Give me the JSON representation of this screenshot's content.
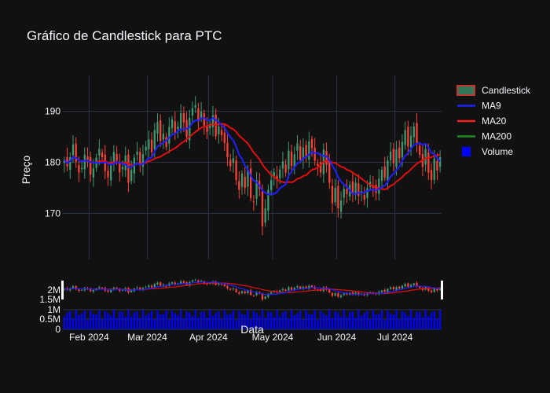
{
  "chart_data": {
    "type": "candlestick",
    "title": "Gráfico de Candlestick para PTC",
    "ylabel": "Preço",
    "xlabel": "Data",
    "ylim": [
      161,
      197
    ],
    "price_ticks": [
      170,
      180,
      190
    ],
    "volume_ticks": [
      "0",
      "0.5M",
      "1M",
      "1.5M",
      "2M"
    ],
    "x_ticks": [
      "Feb 2024",
      "Mar 2024",
      "Apr 2024",
      "May 2024",
      "Jun 2024",
      "Jul 2024"
    ],
    "legend": [
      {
        "name": "Candlestick",
        "color": "#3d9970"
      },
      {
        "name": "MA9",
        "color": "#1f1fff"
      },
      {
        "name": "MA20",
        "color": "#ff1f1f"
      },
      {
        "name": "MA200",
        "color": "#1f8f1f"
      },
      {
        "name": "Volume",
        "color": "#0000ff"
      }
    ],
    "colors": {
      "up": "#3d9970",
      "down": "#ff4136",
      "ma9": "#1f1fff",
      "ma20": "#e01010",
      "ma200": "#1f8f1f",
      "volume": "#0000ff",
      "background": "#111111",
      "grid": "#283442"
    },
    "closes": [
      {
        "month": "2024-01",
        "values": [
          180.5,
          179.2,
          181.0,
          183.5,
          180.1,
          178.0,
          178.9,
          181.5,
          180.3
        ]
      },
      {
        "month": "2024-02",
        "values": [
          177.6,
          178.8,
          180.9,
          182.6,
          181.0,
          178.3,
          177.0,
          179.4,
          182.0,
          180.3,
          178.0,
          179.1,
          181.3,
          176.0,
          178.5,
          180.9,
          182.1,
          179.6,
          181.6,
          183.0
        ]
      },
      {
        "month": "2024-03",
        "values": [
          184.5,
          182.0,
          186.3,
          187.9,
          184.2,
          185.6,
          183.0,
          186.9,
          188.4,
          185.8,
          187.0,
          189.6,
          187.8,
          185.0,
          188.7,
          190.6,
          191.2,
          188.0,
          189.9,
          187.2,
          186.0
        ]
      },
      {
        "month": "2024-04",
        "values": [
          187.5,
          189.2,
          185.1,
          187.0,
          185.3,
          183.8,
          181.0,
          179.2,
          180.8,
          176.5,
          174.6,
          177.8,
          175.0,
          178.5,
          173.0,
          172.3,
          176.5,
          174.8,
          167.5,
          171.0,
          174.6,
          176.5
        ]
      },
      {
        "month": "2024-05",
        "values": [
          178.1,
          176.5,
          178.6,
          180.2,
          178.0,
          182.3,
          179.3,
          181.6,
          183.7,
          180.5,
          182.9,
          181.2,
          184.1,
          182.8,
          180.3,
          179.3,
          178.0,
          182.5,
          179.5,
          176.0,
          172.0,
          175.0
        ]
      },
      {
        "month": "2024-06",
        "values": [
          171.0,
          172.5,
          174.8,
          173.8,
          175.6,
          174.1,
          176.0,
          173.4,
          174.3,
          172.7,
          174.9,
          176.2,
          175.0,
          174.0,
          176.8,
          178.5,
          177.0,
          180.4,
          182.1,
          179.8
        ]
      },
      {
        "month": "2024-07",
        "values": [
          182.5,
          180.8,
          184.0,
          186.3,
          183.1,
          185.2,
          187.0,
          183.8,
          181.5,
          179.1,
          182.6,
          178.0,
          176.5,
          180.8,
          178.4,
          181.0
        ]
      }
    ]
  }
}
